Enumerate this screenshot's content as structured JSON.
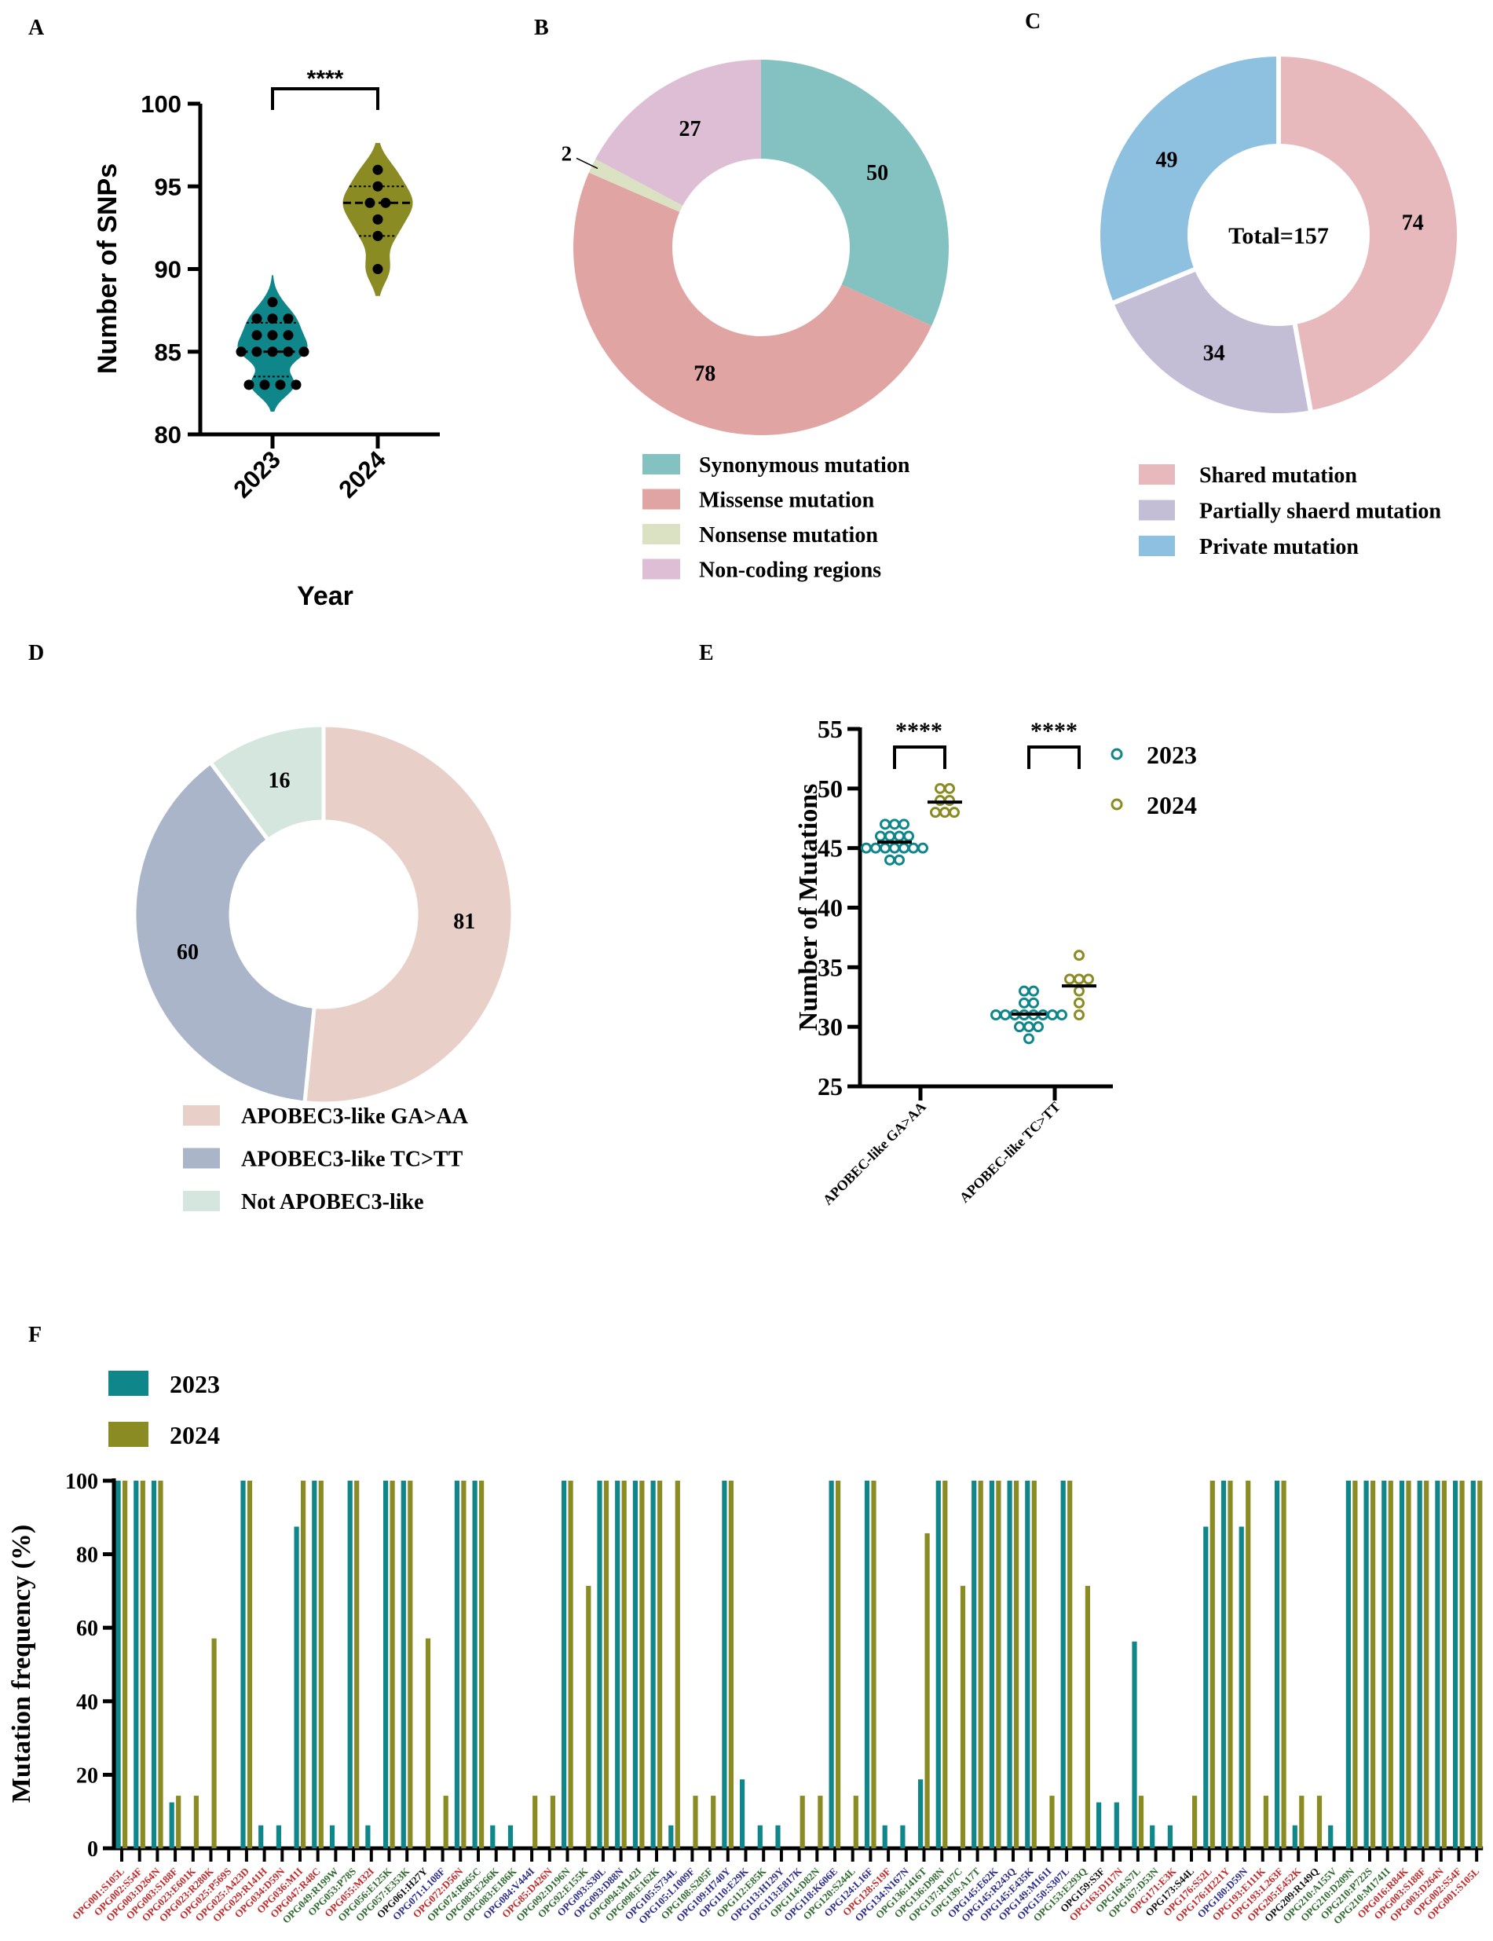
{
  "panels": {
    "A": "A",
    "B": "B",
    "C": "C",
    "D": "D",
    "E": "E",
    "F": "F"
  },
  "colors": {
    "y2023": "#0f878a",
    "y2024": "#8b8b24",
    "label_red": "#c22a2a",
    "label_green": "#2f6a2f",
    "label_blue": "#2c2c8e",
    "label_black": "#111111"
  },
  "chart_data": [
    {
      "id": "A",
      "type": "violin",
      "title": "",
      "xlabel": "Year",
      "ylabel": "Number of SNPs",
      "ylim": [
        80,
        100
      ],
      "yticks": [
        "80",
        "85",
        "90",
        "95",
        "100"
      ],
      "significance": "****",
      "series": [
        {
          "name": "2023",
          "values": [
            88,
            87,
            87,
            87,
            86,
            86,
            86,
            85,
            85,
            85,
            85,
            85,
            83,
            83,
            83,
            83
          ],
          "median": 85,
          "q1": 83.5,
          "q3": 86.75
        },
        {
          "name": "2024",
          "values": [
            96,
            95,
            94,
            94,
            93,
            92,
            90
          ],
          "median": 94,
          "q1": 92,
          "q3": 95
        }
      ]
    },
    {
      "id": "B",
      "type": "pie",
      "donut": true,
      "slices": [
        {
          "label": "Synonymous mutation",
          "value": 50,
          "text": "50",
          "color": "#84c1c1"
        },
        {
          "label": "Missense mutation",
          "value": 78,
          "text": "78",
          "color": "#e0a5a3"
        },
        {
          "label": "Nonsense mutation",
          "value": 2,
          "text": "2",
          "color": "#dae2c3"
        },
        {
          "label": "Non-coding regions",
          "value": 27,
          "text": "27",
          "color": "#debed4"
        }
      ]
    },
    {
      "id": "C",
      "type": "pie",
      "donut": true,
      "center_text": "Total=157",
      "slices": [
        {
          "label": "Shared mutation",
          "value": 74,
          "text": "74",
          "color": "#e7b9bc"
        },
        {
          "label": "Partially shaerd mutation",
          "value": 34,
          "text": "34",
          "color": "#c3bdd6"
        },
        {
          "label": "Private mutation",
          "value": 49,
          "text": "49",
          "color": "#8dc1df"
        }
      ]
    },
    {
      "id": "D",
      "type": "pie",
      "donut": true,
      "slices": [
        {
          "label": "APOBEC3-like GA>AA",
          "value": 81,
          "text": "81",
          "color": "#e8d0c9"
        },
        {
          "label": "APOBEC3-like TC>TT",
          "value": 60,
          "text": "60",
          "color": "#aab5c9"
        },
        {
          "label": "Not APOBEC3-like",
          "value": 16,
          "text": "16",
          "color": "#d4e6de"
        }
      ]
    },
    {
      "id": "E",
      "type": "scatter",
      "ylabel": "Number of Mutations",
      "ylim": [
        25,
        55
      ],
      "yticks": [
        "25",
        "30",
        "35",
        "40",
        "45",
        "50",
        "55"
      ],
      "categories": [
        "APOBEC-like GA>AA",
        "APOBEC-like TC>TT"
      ],
      "significance": [
        "****",
        "****"
      ],
      "legend": [
        "2023",
        "2024"
      ],
      "series": [
        {
          "name": "2023",
          "values": [
            [
              47,
              47,
              47,
              46,
              46,
              46,
              46,
              45,
              45,
              45,
              45,
              45,
              45,
              45,
              44,
              44
            ],
            [
              33,
              33,
              32,
              32,
              31,
              31,
              31,
              31,
              31,
              31,
              31,
              31,
              30,
              30,
              30,
              29
            ]
          ]
        },
        {
          "name": "2024",
          "values": [
            [
              50,
              50,
              49,
              49,
              48,
              48,
              48
            ],
            [
              36,
              34,
              34,
              34,
              33,
              32,
              31
            ]
          ]
        }
      ]
    },
    {
      "id": "F",
      "type": "bar",
      "ylabel": "Mutation frequency (%)",
      "ylim": [
        0,
        100
      ],
      "yticks": [
        "0",
        "20",
        "40",
        "60",
        "80",
        "100"
      ],
      "legend": [
        "2023",
        "2024"
      ],
      "categories": [
        {
          "label": "OPG001:S105L",
          "group": "red"
        },
        {
          "label": "OPG002:S54F",
          "group": "red"
        },
        {
          "label": "OPG003:D264N",
          "group": "red"
        },
        {
          "label": "OPG003:S188F",
          "group": "red"
        },
        {
          "label": "OPG023:E601K",
          "group": "red"
        },
        {
          "label": "OPG023:R280K",
          "group": "red"
        },
        {
          "label": "OPG025:P569S",
          "group": "red"
        },
        {
          "label": "OPG025:A423D",
          "group": "red"
        },
        {
          "label": "OPG029:R141H",
          "group": "red"
        },
        {
          "label": "OPG034:D59N",
          "group": "red"
        },
        {
          "label": "OPG036:M1I",
          "group": "red"
        },
        {
          "label": "OPG047:R48C",
          "group": "red"
        },
        {
          "label": "OPG049:R199W",
          "group": "green"
        },
        {
          "label": "OPG053:P78S",
          "group": "green"
        },
        {
          "label": "OPG055:M32I",
          "group": "red"
        },
        {
          "label": "OPG056:E125K",
          "group": "green"
        },
        {
          "label": "OPG057:E353K",
          "group": "green"
        },
        {
          "label": "OPG061:H27Y",
          "group": "black"
        },
        {
          "label": "OPG071:L108F",
          "group": "blue"
        },
        {
          "label": "OPG072:D56N",
          "group": "red"
        },
        {
          "label": "OPG074:R665C",
          "group": "green"
        },
        {
          "label": "OPG083:E266K",
          "group": "green"
        },
        {
          "label": "OPG083:E186K",
          "group": "green"
        },
        {
          "label": "OPG084:V444I",
          "group": "blue"
        },
        {
          "label": "OPG85:D426N",
          "group": "red"
        },
        {
          "label": "OPG092:D196N",
          "group": "green"
        },
        {
          "label": "OPG92:E155K",
          "group": "green"
        },
        {
          "label": "OPG093:S30L",
          "group": "blue"
        },
        {
          "label": "OPG093:D88N",
          "group": "blue"
        },
        {
          "label": "OPG094:M142I",
          "group": "green"
        },
        {
          "label": "OPG098:E162K",
          "group": "green"
        },
        {
          "label": "OPG105:S734L",
          "group": "blue"
        },
        {
          "label": "OPG105:L1009F",
          "group": "blue"
        },
        {
          "label": "OPG108:S205F",
          "group": "green"
        },
        {
          "label": "OPG109:H740Y",
          "group": "blue"
        },
        {
          "label": "OPG110:E29K",
          "group": "blue"
        },
        {
          "label": "OPG112:E85K",
          "group": "green"
        },
        {
          "label": "OPG113:H129Y",
          "group": "blue"
        },
        {
          "label": "OPG113:E817K",
          "group": "blue"
        },
        {
          "label": "OPG114:D82N",
          "group": "green"
        },
        {
          "label": "OPG118:K606E",
          "group": "blue"
        },
        {
          "label": "OPG120:S244L",
          "group": "green"
        },
        {
          "label": "OPG124:L16F",
          "group": "blue"
        },
        {
          "label": "OPG128:S19F",
          "group": "red"
        },
        {
          "label": "OPG134:N167N",
          "group": "blue"
        },
        {
          "label": "OPG136:I416T",
          "group": "green"
        },
        {
          "label": "OPG136:D98N",
          "group": "green"
        },
        {
          "label": "OPG137:R107C",
          "group": "green"
        },
        {
          "label": "OPG139:A17T",
          "group": "green"
        },
        {
          "label": "OPG145:E62K",
          "group": "blue"
        },
        {
          "label": "OPG145:R243Q",
          "group": "blue"
        },
        {
          "label": "OPG145:E435K",
          "group": "blue"
        },
        {
          "label": "OPG149:M161I",
          "group": "blue"
        },
        {
          "label": "OPG150:S307L",
          "group": "blue"
        },
        {
          "label": "OPG153:E293Q",
          "group": "green"
        },
        {
          "label": "OPG159:S3F",
          "group": "black"
        },
        {
          "label": "OPG163:D117N",
          "group": "red"
        },
        {
          "label": "OPG164:S7L",
          "group": "green"
        },
        {
          "label": "OPG167:D53N",
          "group": "green"
        },
        {
          "label": "OPG171:E3K",
          "group": "red"
        },
        {
          "label": "OPG173:S44L",
          "group": "black"
        },
        {
          "label": "OPG176:S52L",
          "group": "red"
        },
        {
          "label": "OPG176:H221Y",
          "group": "red"
        },
        {
          "label": "OPG180:D59N",
          "group": "blue"
        },
        {
          "label": "OPG193:E111K",
          "group": "red"
        },
        {
          "label": "OPG193:L263F",
          "group": "red"
        },
        {
          "label": "OPG205:E452K",
          "group": "red"
        },
        {
          "label": "OPG209:R149Q",
          "group": "black"
        },
        {
          "label": "OPG210:A155V",
          "group": "green"
        },
        {
          "label": "OPG210:D209N",
          "group": "green"
        },
        {
          "label": "OPG210:P722S",
          "group": "green"
        },
        {
          "label": "OPG210:M1741I",
          "group": "green"
        },
        {
          "label": "OPG016:R84K",
          "group": "red"
        },
        {
          "label": "OPG003:S188F",
          "group": "red"
        },
        {
          "label": "OPG003:D264N",
          "group": "red"
        },
        {
          "label": "OPG002:S54F",
          "group": "red"
        },
        {
          "label": "OPG001:S105L",
          "group": "red"
        }
      ],
      "series": [
        {
          "name": "2023",
          "values": [
            100,
            100,
            100,
            12.5,
            0,
            0,
            0,
            100,
            6.25,
            6.25,
            87.5,
            100,
            6.25,
            100,
            6.25,
            100,
            100,
            0,
            0,
            100,
            100,
            6.25,
            6.25,
            0,
            0,
            100,
            0,
            100,
            100,
            100,
            100,
            6.25,
            0,
            0,
            100,
            18.75,
            6.25,
            6.25,
            0,
            0,
            100,
            0,
            100,
            6.25,
            6.25,
            18.75,
            100,
            0,
            100,
            100,
            100,
            100,
            0,
            100,
            0,
            12.5,
            12.5,
            56.25,
            6.25,
            6.25,
            0,
            87.5,
            100,
            87.5,
            0,
            100,
            6.25,
            0,
            6.25,
            100,
            100,
            100,
            100,
            100,
            100,
            100,
            100
          ]
        },
        {
          "name": "2024",
          "values": [
            100,
            100,
            100,
            14.3,
            14.3,
            57.1,
            0,
            100,
            0,
            0,
            100,
            100,
            0,
            100,
            0,
            100,
            100,
            57.1,
            14.3,
            100,
            100,
            0,
            0,
            14.3,
            14.3,
            100,
            71.4,
            100,
            100,
            100,
            100,
            100,
            14.3,
            14.3,
            100,
            0,
            0,
            0,
            14.3,
            14.3,
            100,
            14.3,
            100,
            0,
            0,
            85.7,
            100,
            71.4,
            100,
            100,
            100,
            100,
            14.3,
            100,
            71.4,
            0,
            0,
            14.3,
            0,
            0,
            14.3,
            100,
            100,
            100,
            14.3,
            100,
            14.3,
            14.3,
            0,
            100,
            100,
            100,
            100,
            100,
            100,
            100,
            100
          ]
        }
      ]
    }
  ]
}
